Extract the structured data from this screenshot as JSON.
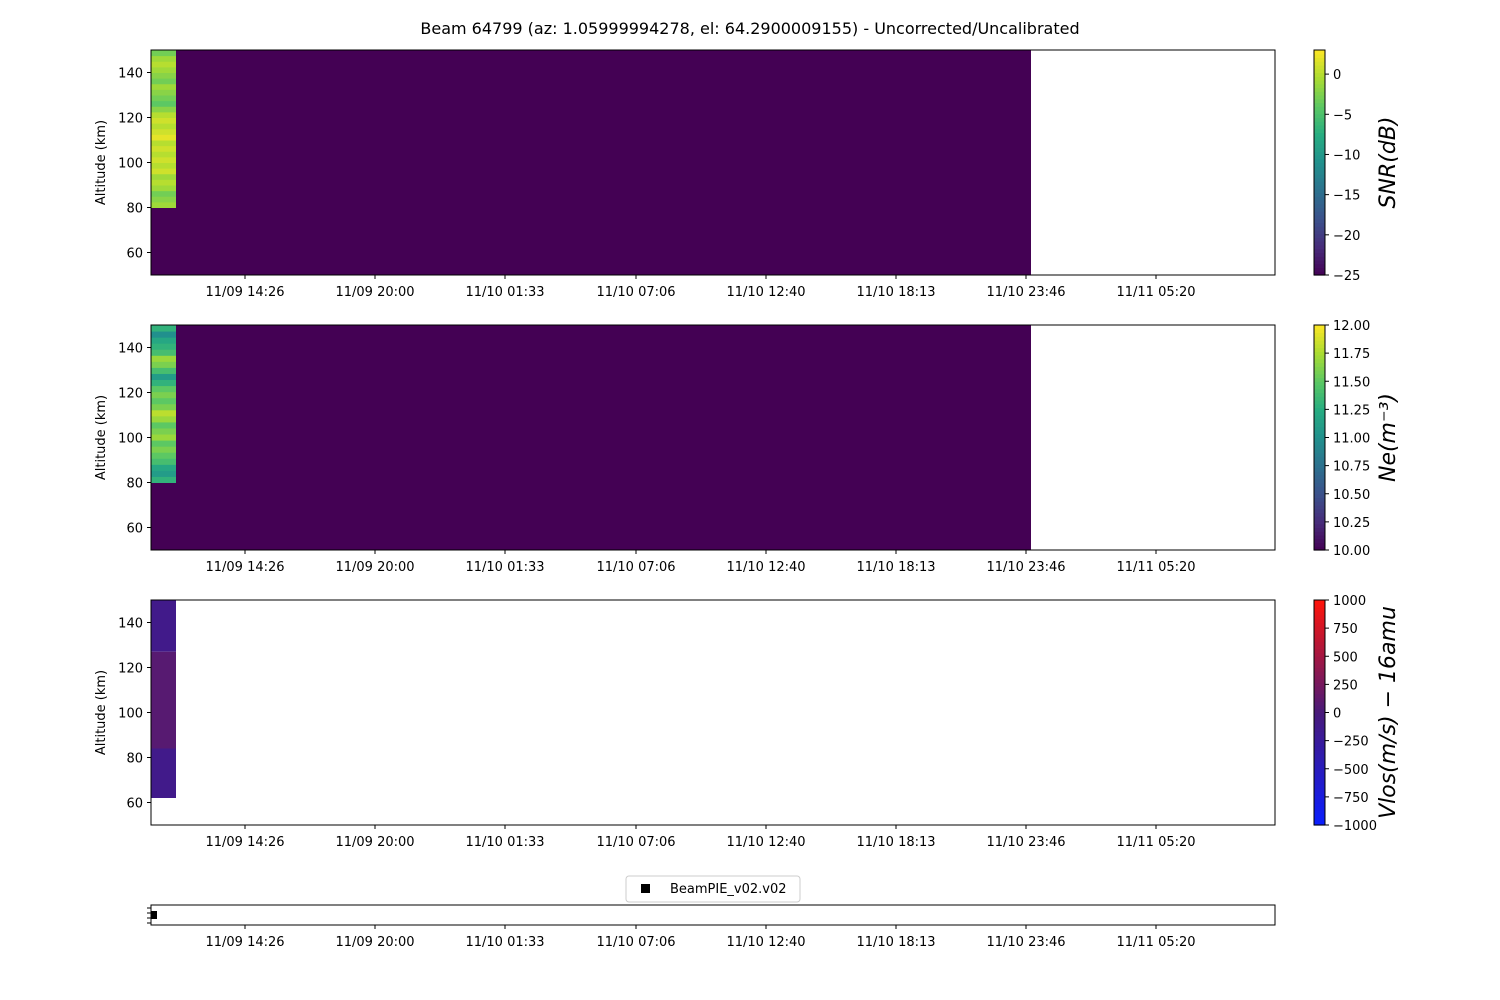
{
  "title": "Beam 64799 (az: 1.05999994278, el: 64.2900009155) - Uncorrected/Uncalibrated",
  "chart_data": [
    {
      "type": "heatmap",
      "name": "snr",
      "ylabel": "Altitude (km)",
      "ylim": [
        50,
        150
      ],
      "yticks": [
        "60",
        "80",
        "100",
        "120",
        "140"
      ],
      "xticks": [
        "11/09 14:26",
        "11/09 20:00",
        "11/10 01:33",
        "11/10 07:06",
        "11/10 12:40",
        "11/10 18:13",
        "11/10 23:46",
        "11/11 05:20"
      ],
      "colorbar": {
        "label": "SNR(dB)",
        "range": [
          -25,
          3
        ],
        "ticks": [
          "0",
          "−5",
          "−10",
          "−15",
          "−20",
          "−25"
        ],
        "colormap": "viridis"
      },
      "fill_value": -25,
      "data_end_time": "11/10 23:46",
      "first_column_altitude_range": [
        80,
        150
      ],
      "first_column_values": [
        -1,
        -2,
        -3,
        -1,
        0,
        -1,
        1,
        0,
        1,
        0,
        1,
        0,
        2,
        1,
        0,
        1,
        0,
        -2,
        -4,
        -3,
        -2,
        -1,
        -3,
        -2,
        -1,
        0,
        -1,
        -3
      ]
    },
    {
      "type": "heatmap",
      "name": "ne",
      "ylabel": "Altitude (km)",
      "ylim": [
        50,
        150
      ],
      "yticks": [
        "60",
        "80",
        "100",
        "120",
        "140"
      ],
      "xticks": [
        "11/09 14:26",
        "11/09 20:00",
        "11/10 01:33",
        "11/10 07:06",
        "11/10 12:40",
        "11/10 18:13",
        "11/10 23:46",
        "11/11 05:20"
      ],
      "colorbar": {
        "label": "Ne(m⁻³)",
        "range": [
          10.0,
          12.0
        ],
        "ticks": [
          "12.00",
          "11.75",
          "11.50",
          "11.25",
          "11.00",
          "10.75",
          "10.50",
          "10.25",
          "10.00"
        ],
        "colormap": "viridis"
      },
      "fill_value": 10.0,
      "data_end_time": "11/10 23:46",
      "first_column_altitude_range": [
        80,
        150
      ],
      "first_column_values": [
        11.3,
        11.1,
        11.2,
        11.4,
        11.5,
        11.6,
        11.5,
        11.7,
        11.6,
        11.5,
        11.7,
        11.8,
        11.6,
        11.5,
        11.6,
        11.5,
        11.3,
        11.1,
        11.4,
        11.6,
        11.7,
        11.4,
        11.3,
        11.2,
        11.0,
        11.3
      ]
    },
    {
      "type": "heatmap",
      "name": "vlos",
      "ylabel": "Altitude (km)",
      "ylim": [
        50,
        150
      ],
      "yticks": [
        "60",
        "80",
        "100",
        "120",
        "140"
      ],
      "xticks": [
        "11/09 14:26",
        "11/09 20:00",
        "11/10 01:33",
        "11/10 07:06",
        "11/10 12:40",
        "11/10 18:13",
        "11/10 23:46",
        "11/11 05:20"
      ],
      "colorbar": {
        "label": "Vlos(m/s) − 16amu",
        "range": [
          -1000,
          1000
        ],
        "ticks": [
          "1000",
          "750",
          "500",
          "250",
          "0",
          "−250",
          "−500",
          "−750",
          "−1000"
        ],
        "colormap": "bwr"
      },
      "blocks": [
        {
          "alt_from": 127,
          "alt_to": 150,
          "value": -120
        },
        {
          "alt_from": 84,
          "alt_to": 127,
          "value": 80
        },
        {
          "alt_from": 62,
          "alt_to": 84,
          "value": -120
        }
      ]
    },
    {
      "type": "scatter",
      "name": "beam-usage",
      "legend": [
        "BeamPIE_v02.v02"
      ],
      "legend_placement": "top-center",
      "xticks": [
        "11/09 14:26",
        "11/09 20:00",
        "11/10 01:33",
        "11/10 07:06",
        "11/10 12:40",
        "11/10 18:13",
        "11/10 23:46",
        "11/11 05:20"
      ],
      "marker_color": "#000000",
      "marker_x": "start"
    }
  ]
}
